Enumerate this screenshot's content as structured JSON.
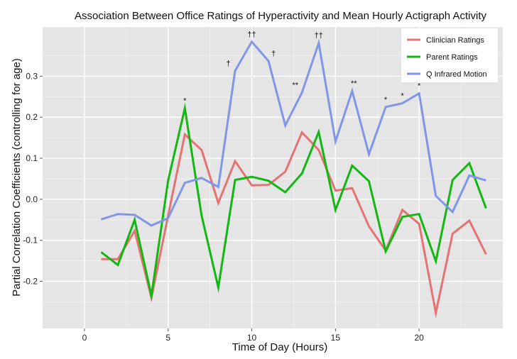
{
  "chart_data": {
    "type": "line",
    "title": "Association Between Office Ratings of Hyperactivity and Mean Hourly Actigraph Activity",
    "xlabel": "Time of Day (Hours)",
    "ylabel": "Partial Correlation Coefficients (controlling for age)",
    "xlim": [
      -2.5,
      25
    ],
    "ylim": [
      -0.315,
      0.42
    ],
    "xticks": [
      0,
      5,
      10,
      15,
      20
    ],
    "yticks": [
      -0.2,
      -0.1,
      0.0,
      0.1,
      0.2,
      0.3
    ],
    "ytick_labels": [
      "-0.2",
      "-0.1",
      "0.0",
      "0.1",
      "0.2",
      "0.3"
    ],
    "grid": true,
    "legend_position": "top-right",
    "colors": {
      "background": "#e5e5e5",
      "grid": "#ffffff",
      "clinician": "#e57373",
      "parent": "#12b812",
      "motion": "#7f96ea"
    },
    "x": [
      1,
      2,
      3,
      4,
      5,
      6,
      7,
      8,
      9,
      10,
      11,
      12,
      13,
      14,
      15,
      16,
      17,
      18,
      19,
      20,
      21,
      22,
      23,
      24
    ],
    "series": [
      {
        "name": "Clinician Ratings",
        "color_key": "clinician",
        "values": [
          -0.146,
          -0.146,
          -0.077,
          -0.24,
          -0.04,
          0.158,
          0.12,
          -0.009,
          0.093,
          0.034,
          0.035,
          0.067,
          0.163,
          0.12,
          0.021,
          0.027,
          -0.066,
          -0.125,
          -0.026,
          -0.06,
          -0.277,
          -0.084,
          -0.052,
          -0.134
        ]
      },
      {
        "name": "Parent Ratings",
        "color_key": "parent",
        "values": [
          -0.129,
          -0.16,
          -0.05,
          -0.235,
          0.045,
          0.222,
          -0.04,
          -0.215,
          0.047,
          0.055,
          0.045,
          0.017,
          0.063,
          0.164,
          -0.026,
          0.082,
          0.044,
          -0.127,
          -0.043,
          -0.036,
          -0.151,
          0.047,
          0.088,
          -0.022
        ]
      },
      {
        "name": "Q Infrared Motion",
        "color_key": "motion",
        "values": [
          -0.049,
          -0.036,
          -0.038,
          -0.064,
          -0.046,
          0.04,
          0.052,
          0.03,
          0.313,
          0.384,
          0.337,
          0.18,
          0.26,
          0.381,
          0.141,
          0.264,
          0.11,
          0.225,
          0.234,
          0.258,
          0.008,
          -0.031,
          0.058,
          0.046
        ]
      }
    ],
    "annotations": [
      {
        "x": 6,
        "y": 0.222,
        "text": "*"
      },
      {
        "x": 8.6,
        "y": 0.313,
        "text": "†"
      },
      {
        "x": 10,
        "y": 0.384,
        "text": "††"
      },
      {
        "x": 11.3,
        "y": 0.337,
        "text": "†"
      },
      {
        "x": 12.6,
        "y": 0.26,
        "text": "**"
      },
      {
        "x": 14,
        "y": 0.381,
        "text": "††"
      },
      {
        "x": 16.1,
        "y": 0.264,
        "text": "**"
      },
      {
        "x": 18,
        "y": 0.225,
        "text": "*"
      },
      {
        "x": 19,
        "y": 0.234,
        "text": "*"
      },
      {
        "x": 20,
        "y": 0.258,
        "text": "*"
      }
    ]
  }
}
